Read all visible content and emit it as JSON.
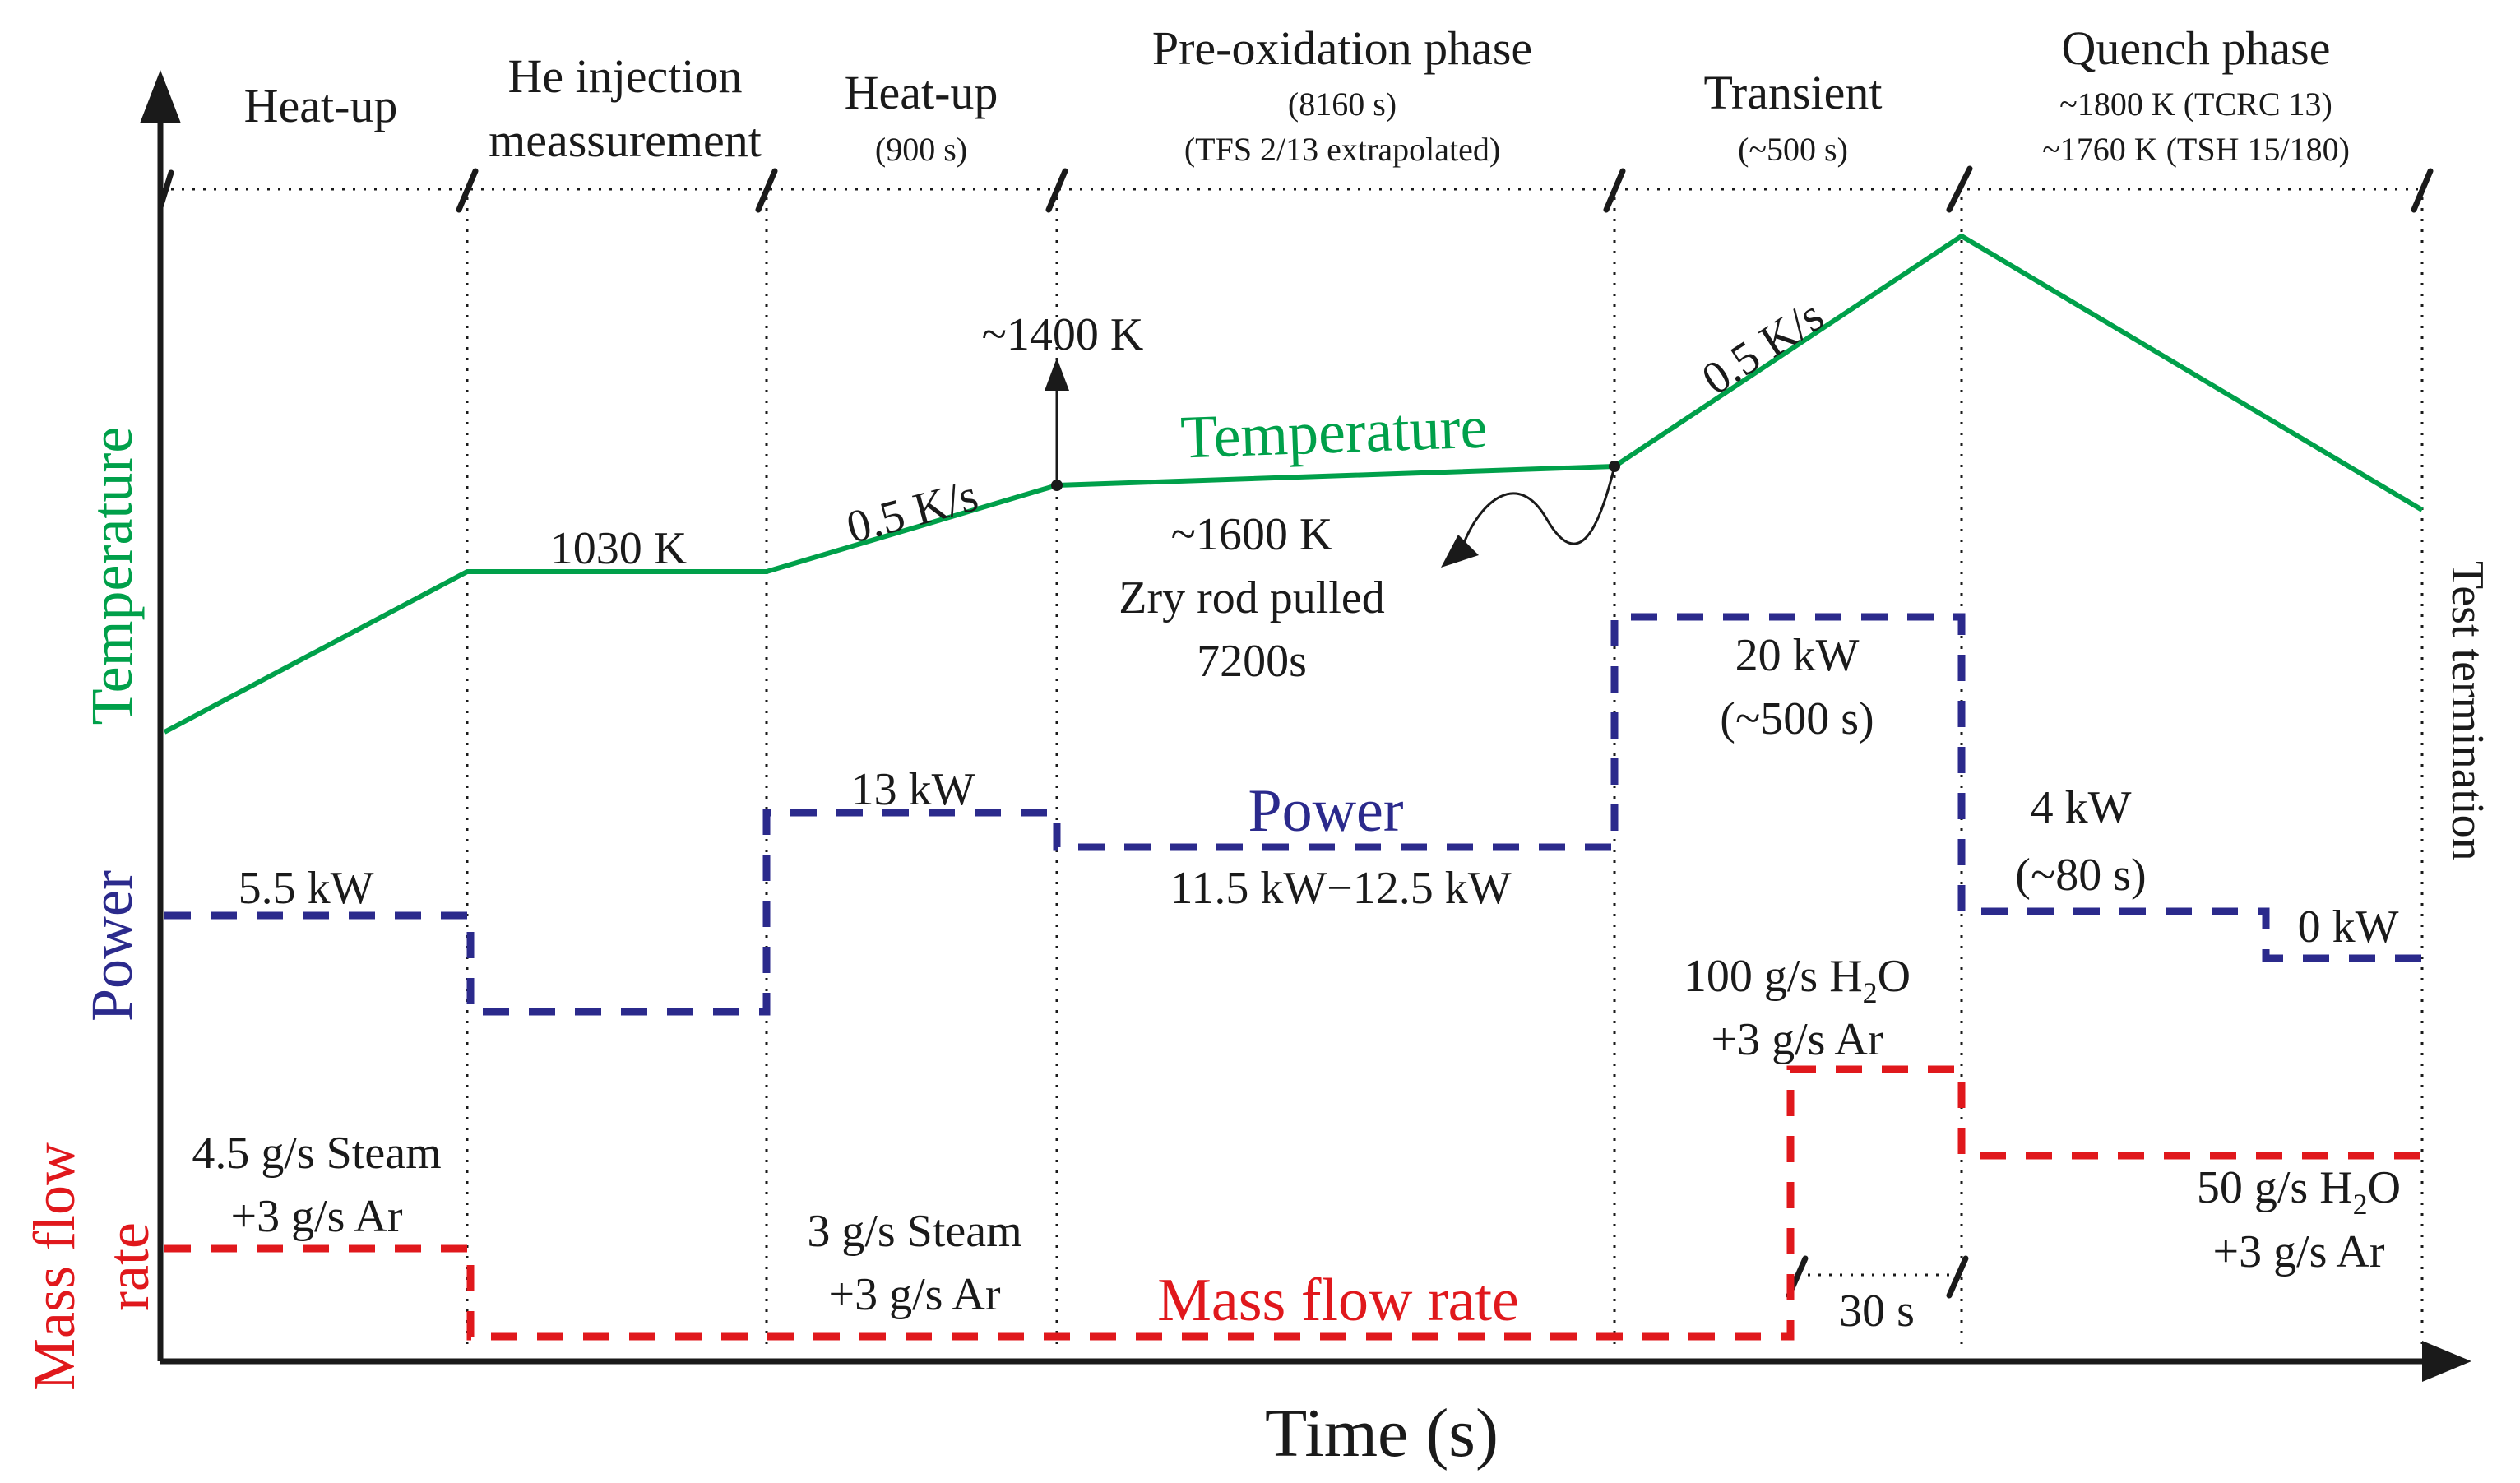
{
  "colors": {
    "temperature": "#00a04a",
    "power": "#2b2a8c",
    "mass_flow": "#e0181c",
    "ink": "#1a1a1a"
  },
  "axes": {
    "time_label": "Time (s)",
    "y_temperature_label": "Temperature",
    "y_power_label": "Power",
    "y_massflow_line1": "Mass flow",
    "y_massflow_line2": "rate"
  },
  "phases": [
    {
      "title": "Heat-up",
      "title2": "",
      "sub1": "",
      "sub2": ""
    },
    {
      "title": "He injection",
      "title2": "meassurement",
      "sub1": "",
      "sub2": ""
    },
    {
      "title": "Heat-up",
      "title2": "",
      "sub1": "(900 s)",
      "sub2": ""
    },
    {
      "title": "Pre-oxidation phase",
      "title2": "",
      "sub1": "(8160 s)",
      "sub2": "(TFS 2/13 extrapolated)"
    },
    {
      "title": "Transient",
      "title2": "",
      "sub1": "(~500 s)",
      "sub2": ""
    },
    {
      "title": "Quench phase",
      "title2": "",
      "sub1": "~1800 K (TCRC 13)",
      "sub2": "~1760 K (TSH 15/180)"
    }
  ],
  "series_labels": {
    "temperature": "Temperature",
    "power": "Power",
    "mass_flow": "Mass flow rate"
  },
  "annotations": {
    "t_1030": "1030 K",
    "t_rate1": "0.5 K/s",
    "t_rate2": "0.5 K/s",
    "t_1400": "~1400 K",
    "t_1600": "~1600 K",
    "zry_1": "Zry rod pulled",
    "zry_2": "7200s",
    "p_55": "5.5 kW",
    "p_13": "13 kW",
    "p_1125": "11.5 kW−12.5 kW",
    "p_20": "20 kW",
    "p_20_dur": "(~500 s)",
    "p_4": "4 kW",
    "p_4_dur": "(~80 s)",
    "p_0": "0 kW",
    "m_45_1": "4.5 g/s Steam",
    "m_45_2": "+3 g/s Ar",
    "m_3_1": "3 g/s Steam",
    "m_3_2": "+3 g/s Ar",
    "m_100_1": "100 g/s H",
    "m_100_sub": "2",
    "m_100_o": "O",
    "m_100_2": "+3 g/s Ar",
    "m_50_1": "50 g/s H",
    "m_50_sub": "2",
    "m_50_o": "O",
    "m_50_2": "+3 g/s Ar",
    "dur_30": "30 s",
    "test_termination": "Test termination"
  }
}
